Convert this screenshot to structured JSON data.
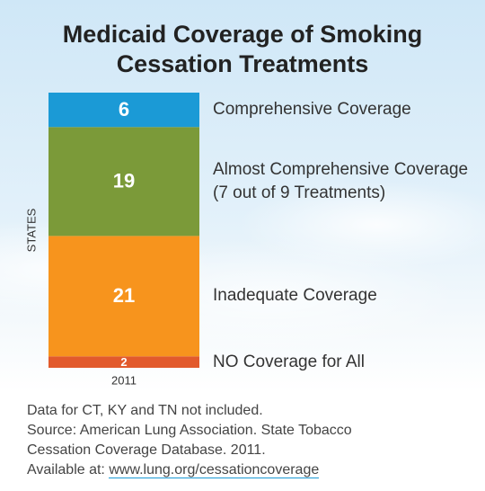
{
  "chart_data": {
    "type": "stacked_bar",
    "title": "Medicaid Coverage of Smoking Cessation Treatments",
    "ylabel": "STATES",
    "categories": [
      "2011"
    ],
    "ylim": [
      0,
      48
    ],
    "series": [
      {
        "name": "NO Coverage for All",
        "color": "#e25a2c",
        "values": [
          2
        ]
      },
      {
        "name": "Inadequate Coverage",
        "color": "#f7941d",
        "values": [
          21
        ]
      },
      {
        "name": "Almost Comprehensive Coverage (7 out of 9 Treatments)",
        "color": "#7b9a39",
        "values": [
          19
        ]
      },
      {
        "name": "Comprehensive Coverage",
        "color": "#1b9ad6",
        "values": [
          6
        ]
      }
    ],
    "notes": [
      "Data for CT, KY and TN not included.",
      "Source: American Lung Association. State Tobacco",
      "Cessation Coverage Database. 2011."
    ],
    "available_at": "Available at:",
    "url": "www.lung.org/cessationcoverage"
  }
}
